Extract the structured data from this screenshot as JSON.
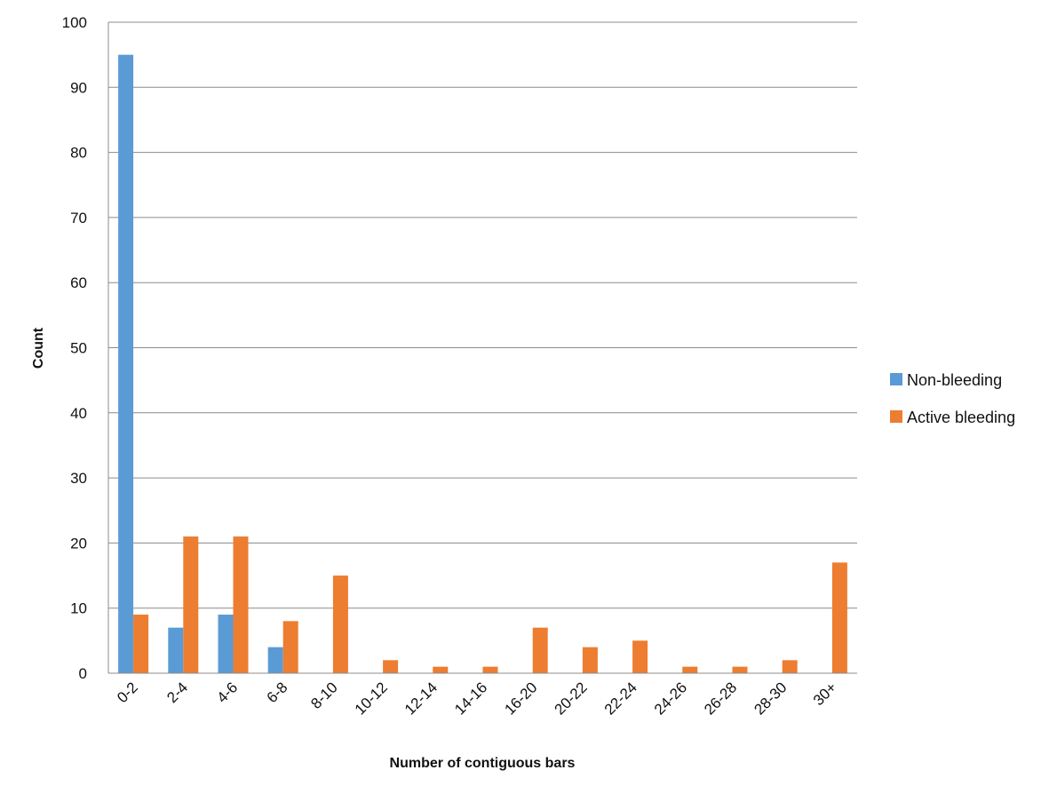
{
  "chart_data": {
    "type": "bar",
    "categories": [
      "0-2",
      "2-4",
      "4-6",
      "6-8",
      "8-10",
      "10-12",
      "12-14",
      "14-16",
      "16-20",
      "20-22",
      "22-24",
      "24-26",
      "26-28",
      "28-30",
      "30+"
    ],
    "series": [
      {
        "name": "Non-bleeding",
        "color": "#5b9bd5",
        "values": [
          95,
          7,
          9,
          4,
          0,
          0,
          0,
          0,
          0,
          0,
          0,
          0,
          0,
          0,
          0
        ]
      },
      {
        "name": "Active bleeding",
        "color": "#ed7d31",
        "values": [
          9,
          21,
          21,
          8,
          15,
          2,
          1,
          1,
          7,
          4,
          5,
          1,
          1,
          2,
          17
        ]
      }
    ],
    "title": "",
    "xlabel": "Number of contiguous bars",
    "ylabel": "Count",
    "ylim": [
      0,
      100
    ],
    "yticks": [
      0,
      10,
      20,
      30,
      40,
      50,
      60,
      70,
      80,
      90,
      100
    ],
    "grid": true,
    "legend_position": "right"
  }
}
